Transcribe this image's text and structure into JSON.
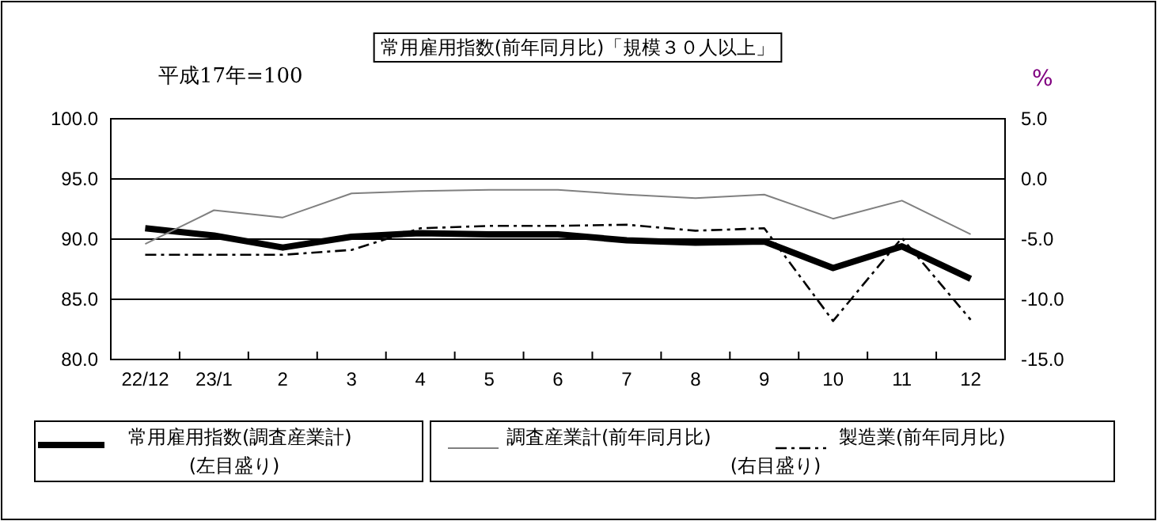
{
  "chart_data": {
    "type": "line",
    "title": "常用雇用指数(前年同月比)「規模３０人以上」",
    "subtitle": "平成17年=100",
    "y2label": "%",
    "categories": [
      "22/12",
      "23/1",
      "2",
      "3",
      "4",
      "5",
      "6",
      "7",
      "8",
      "9",
      "10",
      "11",
      "12"
    ],
    "ylim": [
      80,
      100
    ],
    "yticks": [
      {
        "value": 80,
        "label": "80.0"
      },
      {
        "value": 85,
        "label": "85.0"
      },
      {
        "value": 90,
        "label": "90.0"
      },
      {
        "value": 95,
        "label": "95.0"
      },
      {
        "value": 100,
        "label": "100.0"
      }
    ],
    "y2lim": [
      -15,
      5
    ],
    "y2ticks": [
      {
        "value": -15,
        "label": "-15.0"
      },
      {
        "value": -10,
        "label": "-10.0"
      },
      {
        "value": -5,
        "label": "-5.0"
      },
      {
        "value": 0,
        "label": "0.0"
      },
      {
        "value": 5,
        "label": "5.0"
      }
    ],
    "grid": "y",
    "legend": "bottom",
    "marker": "none",
    "series": [
      {
        "name": "常用雇用指数(調査産業計)",
        "color": "#000000",
        "line_style": "solid",
        "values": [
          90.9,
          90.3,
          89.3,
          90.2,
          90.5,
          90.4,
          90.4,
          89.9,
          89.7,
          89.8,
          87.6,
          89.4,
          86.7
        ]
      },
      {
        "name": "調査産業計(前年同月比)",
        "color": "#808080",
        "line_style": "solid",
        "axis": "y2",
        "values": [
          -5.4,
          -2.6,
          -3.2,
          -1.2,
          -1.0,
          -0.9,
          -0.9,
          -1.3,
          -1.6,
          -1.3,
          -3.3,
          -1.8,
          -4.6
        ]
      },
      {
        "name": "製造業(前年同月比)",
        "color": "#000000",
        "line_style": "dashed",
        "axis": "y2",
        "values": [
          -6.3,
          -6.3,
          -6.3,
          -5.9,
          -4.1,
          -3.9,
          -3.9,
          -3.8,
          -4.3,
          -4.1,
          -11.8,
          -4.9,
          -11.7
        ]
      }
    ],
    "annotations": [
      "(左目盛り)",
      "(右目盛り)"
    ]
  }
}
